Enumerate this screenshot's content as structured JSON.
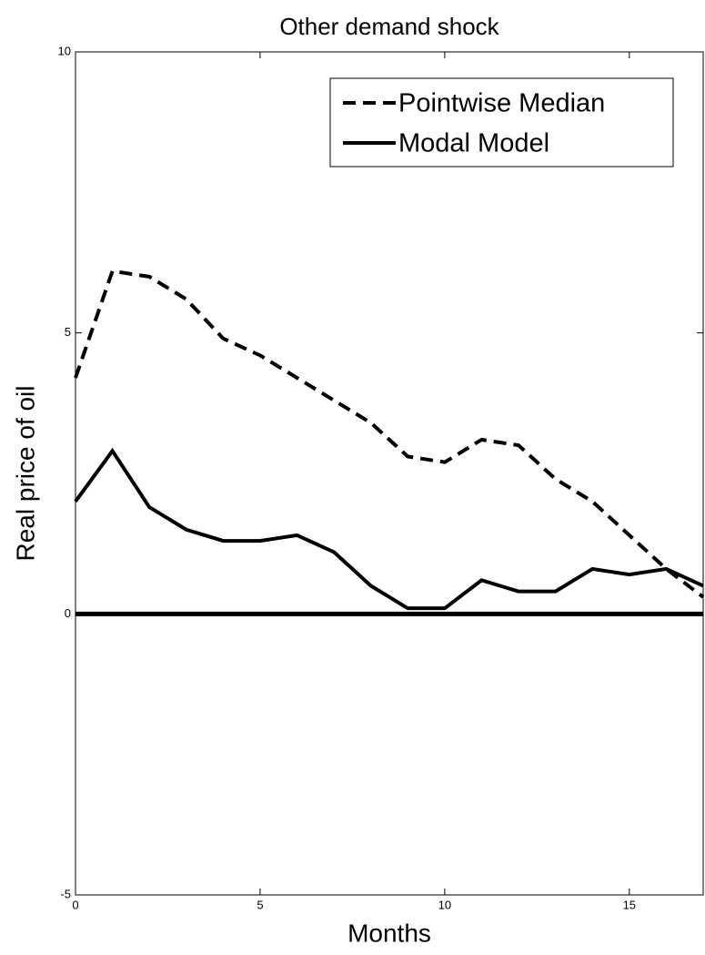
{
  "chart_data": {
    "type": "line",
    "title": "Other demand shock",
    "xlabel": "Months",
    "ylabel": "Real price of oil",
    "x": [
      0,
      1,
      2,
      3,
      4,
      5,
      6,
      7,
      8,
      9,
      10,
      11,
      12,
      13,
      14,
      15,
      16,
      17
    ],
    "series": [
      {
        "name": "Pointwise Median",
        "color": "#000000",
        "dash": true,
        "values": [
          4.2,
          6.1,
          6.0,
          5.6,
          4.9,
          4.6,
          4.2,
          3.8,
          3.4,
          2.8,
          2.7,
          3.1,
          3.0,
          2.4,
          2.0,
          1.4,
          0.8,
          0.3
        ]
      },
      {
        "name": "Modal Model",
        "color": "#000000",
        "dash": false,
        "values": [
          2.0,
          2.9,
          1.9,
          1.5,
          1.3,
          1.3,
          1.4,
          1.1,
          0.5,
          0.1,
          0.1,
          0.6,
          0.4,
          0.4,
          0.8,
          0.7,
          0.8,
          0.5
        ]
      }
    ],
    "hline": 0,
    "xlim": [
      0,
      17
    ],
    "xticks": [
      0,
      5,
      10,
      15
    ],
    "ylim": [
      -5,
      10
    ],
    "yticks": [
      -5,
      0,
      5,
      10
    ],
    "legend": "northeast"
  }
}
